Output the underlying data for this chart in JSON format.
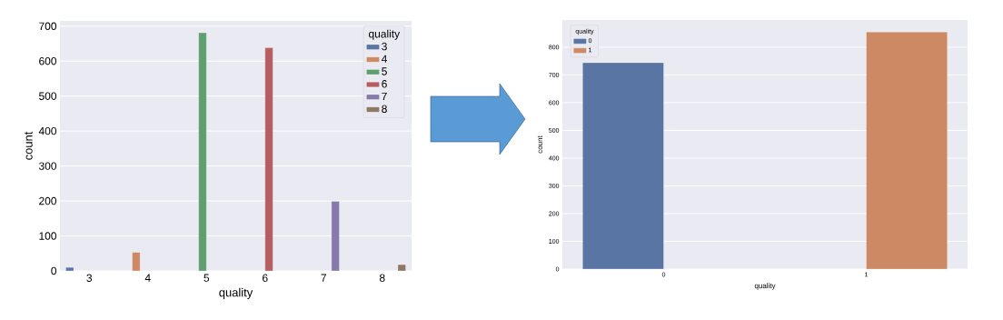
{
  "chart_data": [
    {
      "type": "bar",
      "categories": [
        "3",
        "4",
        "5",
        "6",
        "7",
        "8"
      ],
      "xlabel": "quality",
      "ylabel": "count",
      "legend_title": "quality",
      "legend": "top right",
      "grid": "y",
      "ylim": [
        0,
        715
      ],
      "yticks": [
        0,
        100,
        200,
        300,
        400,
        500,
        600,
        700
      ],
      "series": [
        {
          "name": "3",
          "color": "#5975a4",
          "values": [
            10,
            null,
            null,
            null,
            null,
            null
          ]
        },
        {
          "name": "4",
          "color": "#cc8963",
          "values": [
            null,
            53,
            null,
            null,
            null,
            null
          ]
        },
        {
          "name": "5",
          "color": "#5f9e6e",
          "values": [
            null,
            null,
            681,
            null,
            null,
            null
          ]
        },
        {
          "name": "6",
          "color": "#b55d60",
          "values": [
            null,
            null,
            null,
            638,
            null,
            null
          ]
        },
        {
          "name": "7",
          "color": "#857aab",
          "values": [
            null,
            null,
            null,
            null,
            199,
            null
          ]
        },
        {
          "name": "8",
          "color": "#8d7866",
          "values": [
            null,
            null,
            null,
            null,
            null,
            18
          ]
        }
      ]
    },
    {
      "type": "bar",
      "categories": [
        "0",
        "1"
      ],
      "xlabel": "quality",
      "ylabel": "count",
      "legend_title": "quality",
      "legend": "top left",
      "grid": "y",
      "ylim": [
        0,
        898
      ],
      "yticks": [
        0,
        100,
        200,
        300,
        400,
        500,
        600,
        700,
        800
      ],
      "series": [
        {
          "name": "0",
          "color": "#5975a4",
          "values": [
            744,
            null
          ]
        },
        {
          "name": "1",
          "color": "#cc8963",
          "values": [
            null,
            855
          ]
        }
      ]
    }
  ]
}
